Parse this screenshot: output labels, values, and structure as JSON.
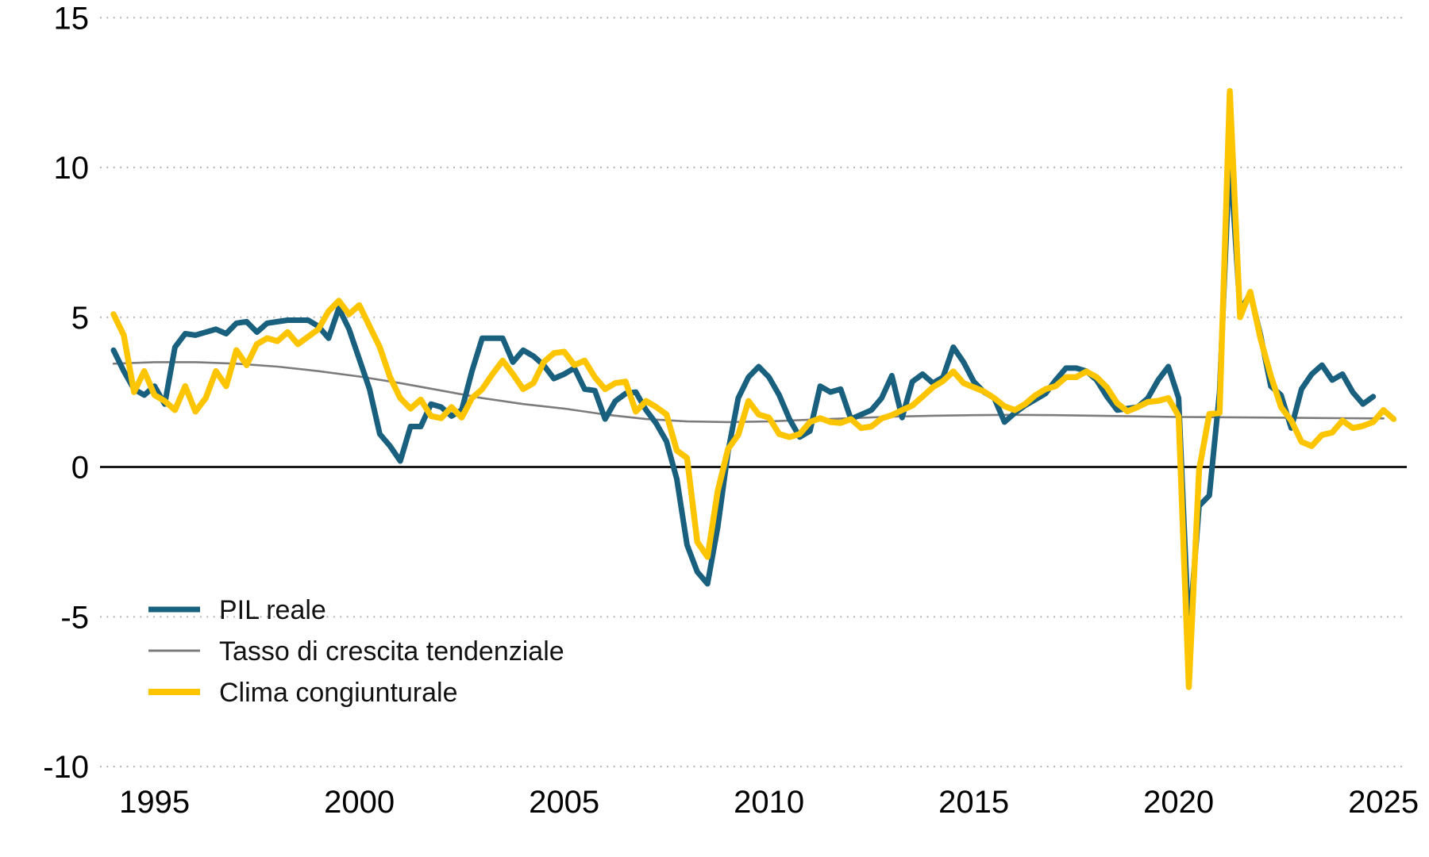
{
  "chart_data": {
    "type": "line",
    "title": "",
    "xlabel": "",
    "ylabel": "",
    "unit": "percent (tasso di crescita, %)",
    "x_axis": {
      "ticks": [
        1995,
        2000,
        2005,
        2010,
        2015,
        2020,
        2025
      ],
      "labels": [
        "1995",
        "2000",
        "2005",
        "2010",
        "2015",
        "2020",
        "2025"
      ],
      "range": [
        1993.7,
        2025.9
      ]
    },
    "y_axis": {
      "ticks": [
        15,
        10,
        5,
        0,
        -5,
        -10
      ],
      "labels": [
        "15",
        "10",
        "5",
        "0",
        "-5",
        "-10"
      ],
      "range": [
        -10.6,
        15.5
      ],
      "grid": "dotted",
      "zero_line": true
    },
    "legend": {
      "position": "inside-bottom-left",
      "entries": [
        "PIL reale",
        "Tasso di crescita tendenziale",
        "Clima congiunturale"
      ]
    },
    "series": [
      {
        "id": "tasso-tendenziale",
        "name": "Tasso di crescita tendenziale",
        "color": "#7c7c7c",
        "stroke_width": 2.6,
        "start_year": 1994,
        "frequency": "yearly",
        "values": [
          3.45,
          3.5,
          3.5,
          3.45,
          3.35,
          3.2,
          3.02,
          2.8,
          2.55,
          2.3,
          2.1,
          1.95,
          1.75,
          1.6,
          1.52,
          1.5,
          1.52,
          1.58,
          1.63,
          1.68,
          1.71,
          1.73,
          1.74,
          1.73,
          1.71,
          1.69,
          1.67,
          1.66,
          1.65,
          1.64,
          1.63,
          1.62
        ]
      },
      {
        "id": "pil-reale",
        "name": "PIL reale",
        "color": "#19607e",
        "stroke_width": 7,
        "start_year": 1994,
        "frequency": "quarterly",
        "values": [
          3.9,
          3.2,
          2.6,
          2.4,
          2.7,
          2.1,
          4.0,
          4.45,
          4.4,
          4.5,
          4.6,
          4.45,
          4.8,
          4.85,
          4.5,
          4.8,
          4.85,
          4.9,
          4.9,
          4.9,
          4.7,
          4.3,
          5.3,
          4.6,
          3.6,
          2.6,
          1.1,
          0.7,
          0.2,
          1.35,
          1.35,
          2.1,
          2.0,
          1.7,
          1.9,
          3.2,
          4.3,
          4.3,
          4.3,
          3.5,
          3.9,
          3.7,
          3.4,
          2.95,
          3.1,
          3.3,
          2.6,
          2.55,
          1.6,
          2.2,
          2.45,
          2.5,
          1.9,
          1.45,
          0.85,
          -0.4,
          -2.6,
          -3.5,
          -3.9,
          -2.0,
          0.5,
          2.3,
          3.0,
          3.35,
          3.0,
          2.4,
          1.6,
          1.0,
          1.2,
          2.7,
          2.5,
          2.6,
          1.6,
          1.75,
          1.9,
          2.3,
          3.05,
          1.65,
          2.85,
          3.1,
          2.8,
          3.0,
          4.0,
          3.5,
          2.85,
          2.5,
          2.3,
          1.5,
          1.8,
          2.05,
          2.25,
          2.45,
          2.9,
          3.3,
          3.3,
          3.2,
          2.9,
          2.35,
          1.9,
          1.95,
          2.0,
          2.3,
          2.9,
          3.35,
          2.3,
          -5.66,
          -1.3,
          -0.95,
          2.5,
          10.5,
          5.2,
          5.8,
          4.4,
          2.7,
          2.4,
          1.3,
          2.6,
          3.1,
          3.4,
          2.9,
          3.1,
          2.5,
          2.1,
          2.35
        ]
      },
      {
        "id": "clima-congiunturale",
        "name": "Clima congiunturale",
        "color": "#fcc500",
        "stroke_width": 7.5,
        "start_year": 1994,
        "frequency": "quarterly",
        "values": [
          5.1,
          4.4,
          2.5,
          3.2,
          2.4,
          2.2,
          1.9,
          2.7,
          1.85,
          2.3,
          3.2,
          2.7,
          3.9,
          3.4,
          4.1,
          4.3,
          4.2,
          4.5,
          4.1,
          4.35,
          4.6,
          5.2,
          5.55,
          5.1,
          5.4,
          4.7,
          4.0,
          3.0,
          2.3,
          1.95,
          2.25,
          1.7,
          1.63,
          2.0,
          1.65,
          2.3,
          2.6,
          3.1,
          3.55,
          3.1,
          2.6,
          2.8,
          3.5,
          3.8,
          3.85,
          3.4,
          3.55,
          3.0,
          2.6,
          2.8,
          2.85,
          1.85,
          2.2,
          2.0,
          1.75,
          0.55,
          0.3,
          -2.5,
          -3.0,
          -0.8,
          0.6,
          1.07,
          2.2,
          1.75,
          1.65,
          1.1,
          1.0,
          1.1,
          1.5,
          1.63,
          1.5,
          1.47,
          1.6,
          1.3,
          1.35,
          1.62,
          1.73,
          1.9,
          2.05,
          2.35,
          2.66,
          2.87,
          3.19,
          2.8,
          2.66,
          2.52,
          2.3,
          2.03,
          1.9,
          2.1,
          2.39,
          2.6,
          2.7,
          3.0,
          3.0,
          3.19,
          3.0,
          2.66,
          2.13,
          1.86,
          2.0,
          2.17,
          2.21,
          2.3,
          1.7,
          -7.35,
          -0.1,
          1.77,
          1.8,
          12.55,
          5.0,
          5.85,
          4.28,
          3.05,
          2.0,
          1.55,
          0.84,
          0.7,
          1.07,
          1.15,
          1.55,
          1.3,
          1.37,
          1.5,
          1.9,
          1.6
        ]
      }
    ]
  },
  "colors": {
    "background": "#ffffff",
    "grid": "#b3b3b3",
    "zero_axis": "#1a1a1a",
    "text": "#000000"
  }
}
